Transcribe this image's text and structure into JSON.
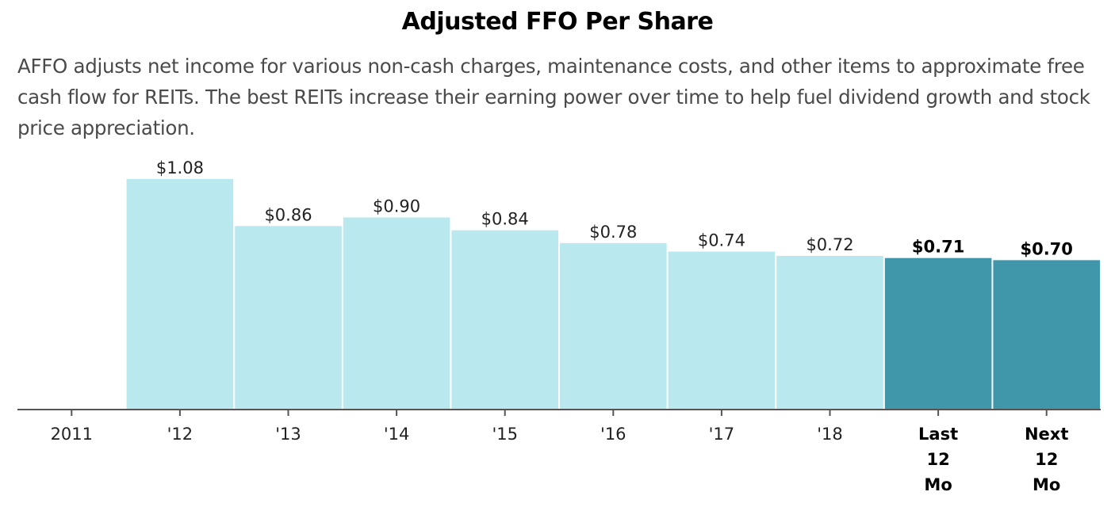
{
  "header": {
    "title": "Adjusted FFO Per Share",
    "description": "AFFO adjusts net income for various non-cash charges, maintenance costs, and other items to approximate free cash flow for REITs. The best REITs increase their earning power over time to help fuel dividend growth and stock price appreciation."
  },
  "colors": {
    "historical": "#b9e8ee",
    "estimate": "#4097a9",
    "axis": "#555555"
  },
  "chart_data": {
    "type": "bar",
    "title": "Adjusted FFO Per Share",
    "categories": [
      "2011",
      "'12",
      "'13",
      "'14",
      "'15",
      "'16",
      "'17",
      "'18",
      "Last 12 Mo",
      "Next 12 Mo"
    ],
    "category_lines": [
      [
        "2011"
      ],
      [
        "'12"
      ],
      [
        "'13"
      ],
      [
        "'14"
      ],
      [
        "'15"
      ],
      [
        "'16"
      ],
      [
        "'17"
      ],
      [
        "'18"
      ],
      [
        "Last",
        "12",
        "Mo"
      ],
      [
        "Next",
        "12",
        "Mo"
      ]
    ],
    "values": [
      null,
      1.08,
      0.86,
      0.9,
      0.84,
      0.78,
      0.74,
      0.72,
      0.71,
      0.7
    ],
    "value_labels": [
      "",
      "$1.08",
      "$0.86",
      "$0.90",
      "$0.84",
      "$0.78",
      "$0.74",
      "$0.72",
      "$0.71",
      "$0.70"
    ],
    "highlight": [
      false,
      false,
      false,
      false,
      false,
      false,
      false,
      false,
      true,
      true
    ],
    "ylim": [
      0,
      1.08
    ],
    "grid": false,
    "legend": "none",
    "xlabel": "",
    "ylabel": ""
  }
}
